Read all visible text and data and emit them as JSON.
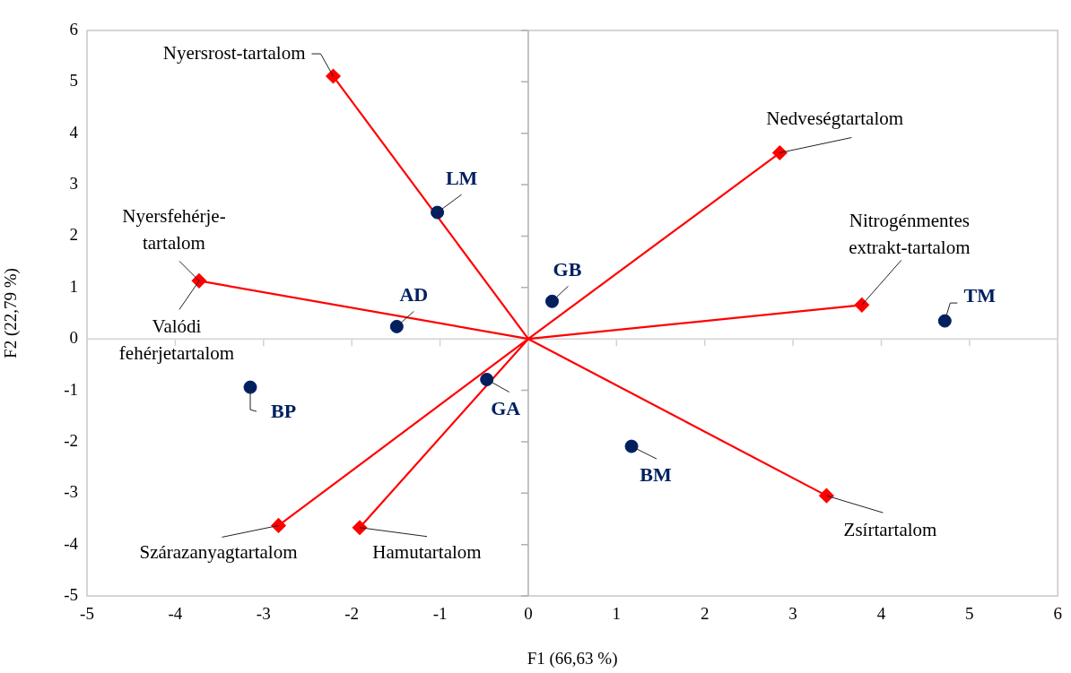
{
  "chart_data": {
    "type": "scatter",
    "xlabel": "F1 (66,63 %)",
    "ylabel": "F2 (22,79 %)",
    "xlim": [
      -5,
      6
    ],
    "ylim": [
      -5,
      6
    ],
    "xticks": [
      -5,
      -4,
      -3,
      -2,
      -1,
      0,
      1,
      2,
      3,
      4,
      5,
      6
    ],
    "yticks": [
      -5,
      -4,
      -3,
      -2,
      -1,
      0,
      1,
      2,
      3,
      4,
      5,
      6
    ],
    "grid": false,
    "legend": false,
    "ref_lines": [
      {
        "axis": "x",
        "value": 0,
        "color": "#b0b0b0"
      },
      {
        "axis": "y",
        "value": 0,
        "color": "#d4d4d4"
      }
    ],
    "series": [
      {
        "type": "line",
        "color": "#ff0000",
        "marker": "diamond",
        "x": [
          0,
          -2.21,
          null,
          0,
          2.85,
          null,
          0,
          3.78,
          null,
          0,
          -3.73,
          null,
          0,
          -2.83,
          null,
          0,
          -1.91,
          null,
          0,
          3.38
        ],
        "values": [
          0,
          5.11,
          null,
          0,
          3.62,
          null,
          0,
          0.66,
          null,
          0,
          1.13,
          null,
          0,
          -3.63,
          null,
          0,
          -3.67,
          null,
          0,
          -3.05
        ]
      },
      {
        "color": "#002060",
        "marker": "circle",
        "x": [
          -1.03,
          -1.49,
          0.27,
          4.72,
          -3.15,
          -0.47,
          1.17
        ],
        "values": [
          2.46,
          0.24,
          0.73,
          0.35,
          -0.94,
          -0.79,
          -2.09
        ],
        "value_labels": [
          "LM",
          "AD",
          "GB",
          "TM",
          "BP",
          "GA",
          "BM"
        ]
      }
    ],
    "annotations": [
      {
        "text": "Nyersrost-tartalom",
        "x": -2.21,
        "y": 5.11
      },
      {
        "text": "Nedveségtartalom",
        "x": 2.85,
        "y": 3.62
      },
      {
        "text": "Nitrogénmentes\nextrakt-tartalom",
        "x": 3.78,
        "y": 0.66
      },
      {
        "text": "Nyersfehérje-\ntartalom",
        "x": -3.73,
        "y": 1.13
      },
      {
        "text": "Valódi\nfehérjetartalom",
        "x": -3.73,
        "y": 1.13
      },
      {
        "text": "Szárazanyagtartalom",
        "x": -2.83,
        "y": -3.63
      },
      {
        "text": "Hamutartalom",
        "x": -1.91,
        "y": -3.67
      },
      {
        "text": "Zsírtartalom",
        "x": 3.38,
        "y": -3.05
      }
    ]
  }
}
